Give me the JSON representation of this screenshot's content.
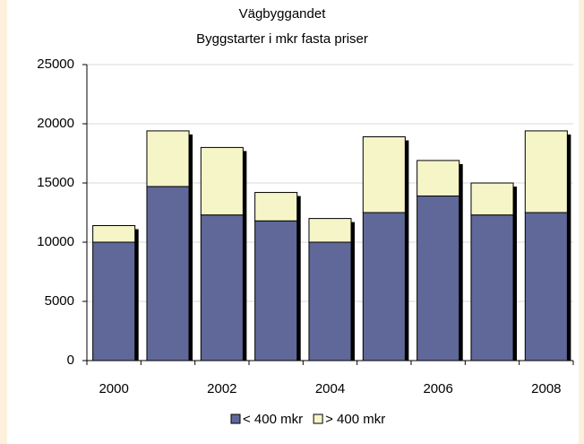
{
  "chart_data": {
    "type": "stacked_bar",
    "title": "Vägbyggandet",
    "subtitle": "Byggstarter i mkr fasta priser",
    "categories": [
      "2000",
      null,
      "2002",
      null,
      "2004",
      null,
      "2006",
      null,
      "2008"
    ],
    "series": [
      {
        "name": "< 400 mkr",
        "color": "#5f6898",
        "values": [
          10000,
          14700,
          12300,
          11800,
          10000,
          12500,
          13900,
          12300,
          12500
        ]
      },
      {
        "name": "> 400 mkr",
        "color": "#f5f5c8",
        "values": [
          1400,
          4700,
          5700,
          2400,
          2000,
          6400,
          3000,
          2700,
          6900
        ]
      }
    ],
    "ylim": [
      0,
      25000
    ],
    "yticks": [
      0,
      5000,
      10000,
      15000,
      20000,
      25000
    ],
    "grid": true,
    "legend": "bottom"
  }
}
